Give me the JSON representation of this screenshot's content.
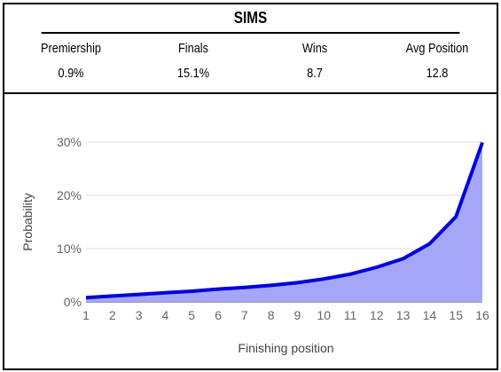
{
  "title": "SIMS",
  "stats": [
    {
      "label": "Premiership",
      "value": "0.9%"
    },
    {
      "label": "Finals",
      "value": "15.1%"
    },
    {
      "label": "Wins",
      "value": "8.7"
    },
    {
      "label": "Avg Position",
      "value": "12.8"
    }
  ],
  "chart_data": {
    "type": "area",
    "xlabel": "Finishing position",
    "ylabel": "Probability",
    "x": [
      1,
      2,
      3,
      4,
      5,
      6,
      7,
      8,
      9,
      10,
      11,
      12,
      13,
      14,
      15,
      16
    ],
    "values": [
      0.8,
      1.1,
      1.4,
      1.7,
      2.0,
      2.4,
      2.7,
      3.1,
      3.6,
      4.3,
      5.2,
      6.5,
      8.1,
      10.9,
      16.0,
      29.9
    ],
    "y_ticks": [
      "0%",
      "10%",
      "20%",
      "30%"
    ],
    "ylim": [
      0,
      30
    ],
    "xlim": [
      1,
      16
    ],
    "grid": true,
    "legend": "none",
    "colors": {
      "line": "#0000dd",
      "fill": "#a6a6f8",
      "grid": "#dddddd",
      "tick_text": "#666666"
    }
  }
}
